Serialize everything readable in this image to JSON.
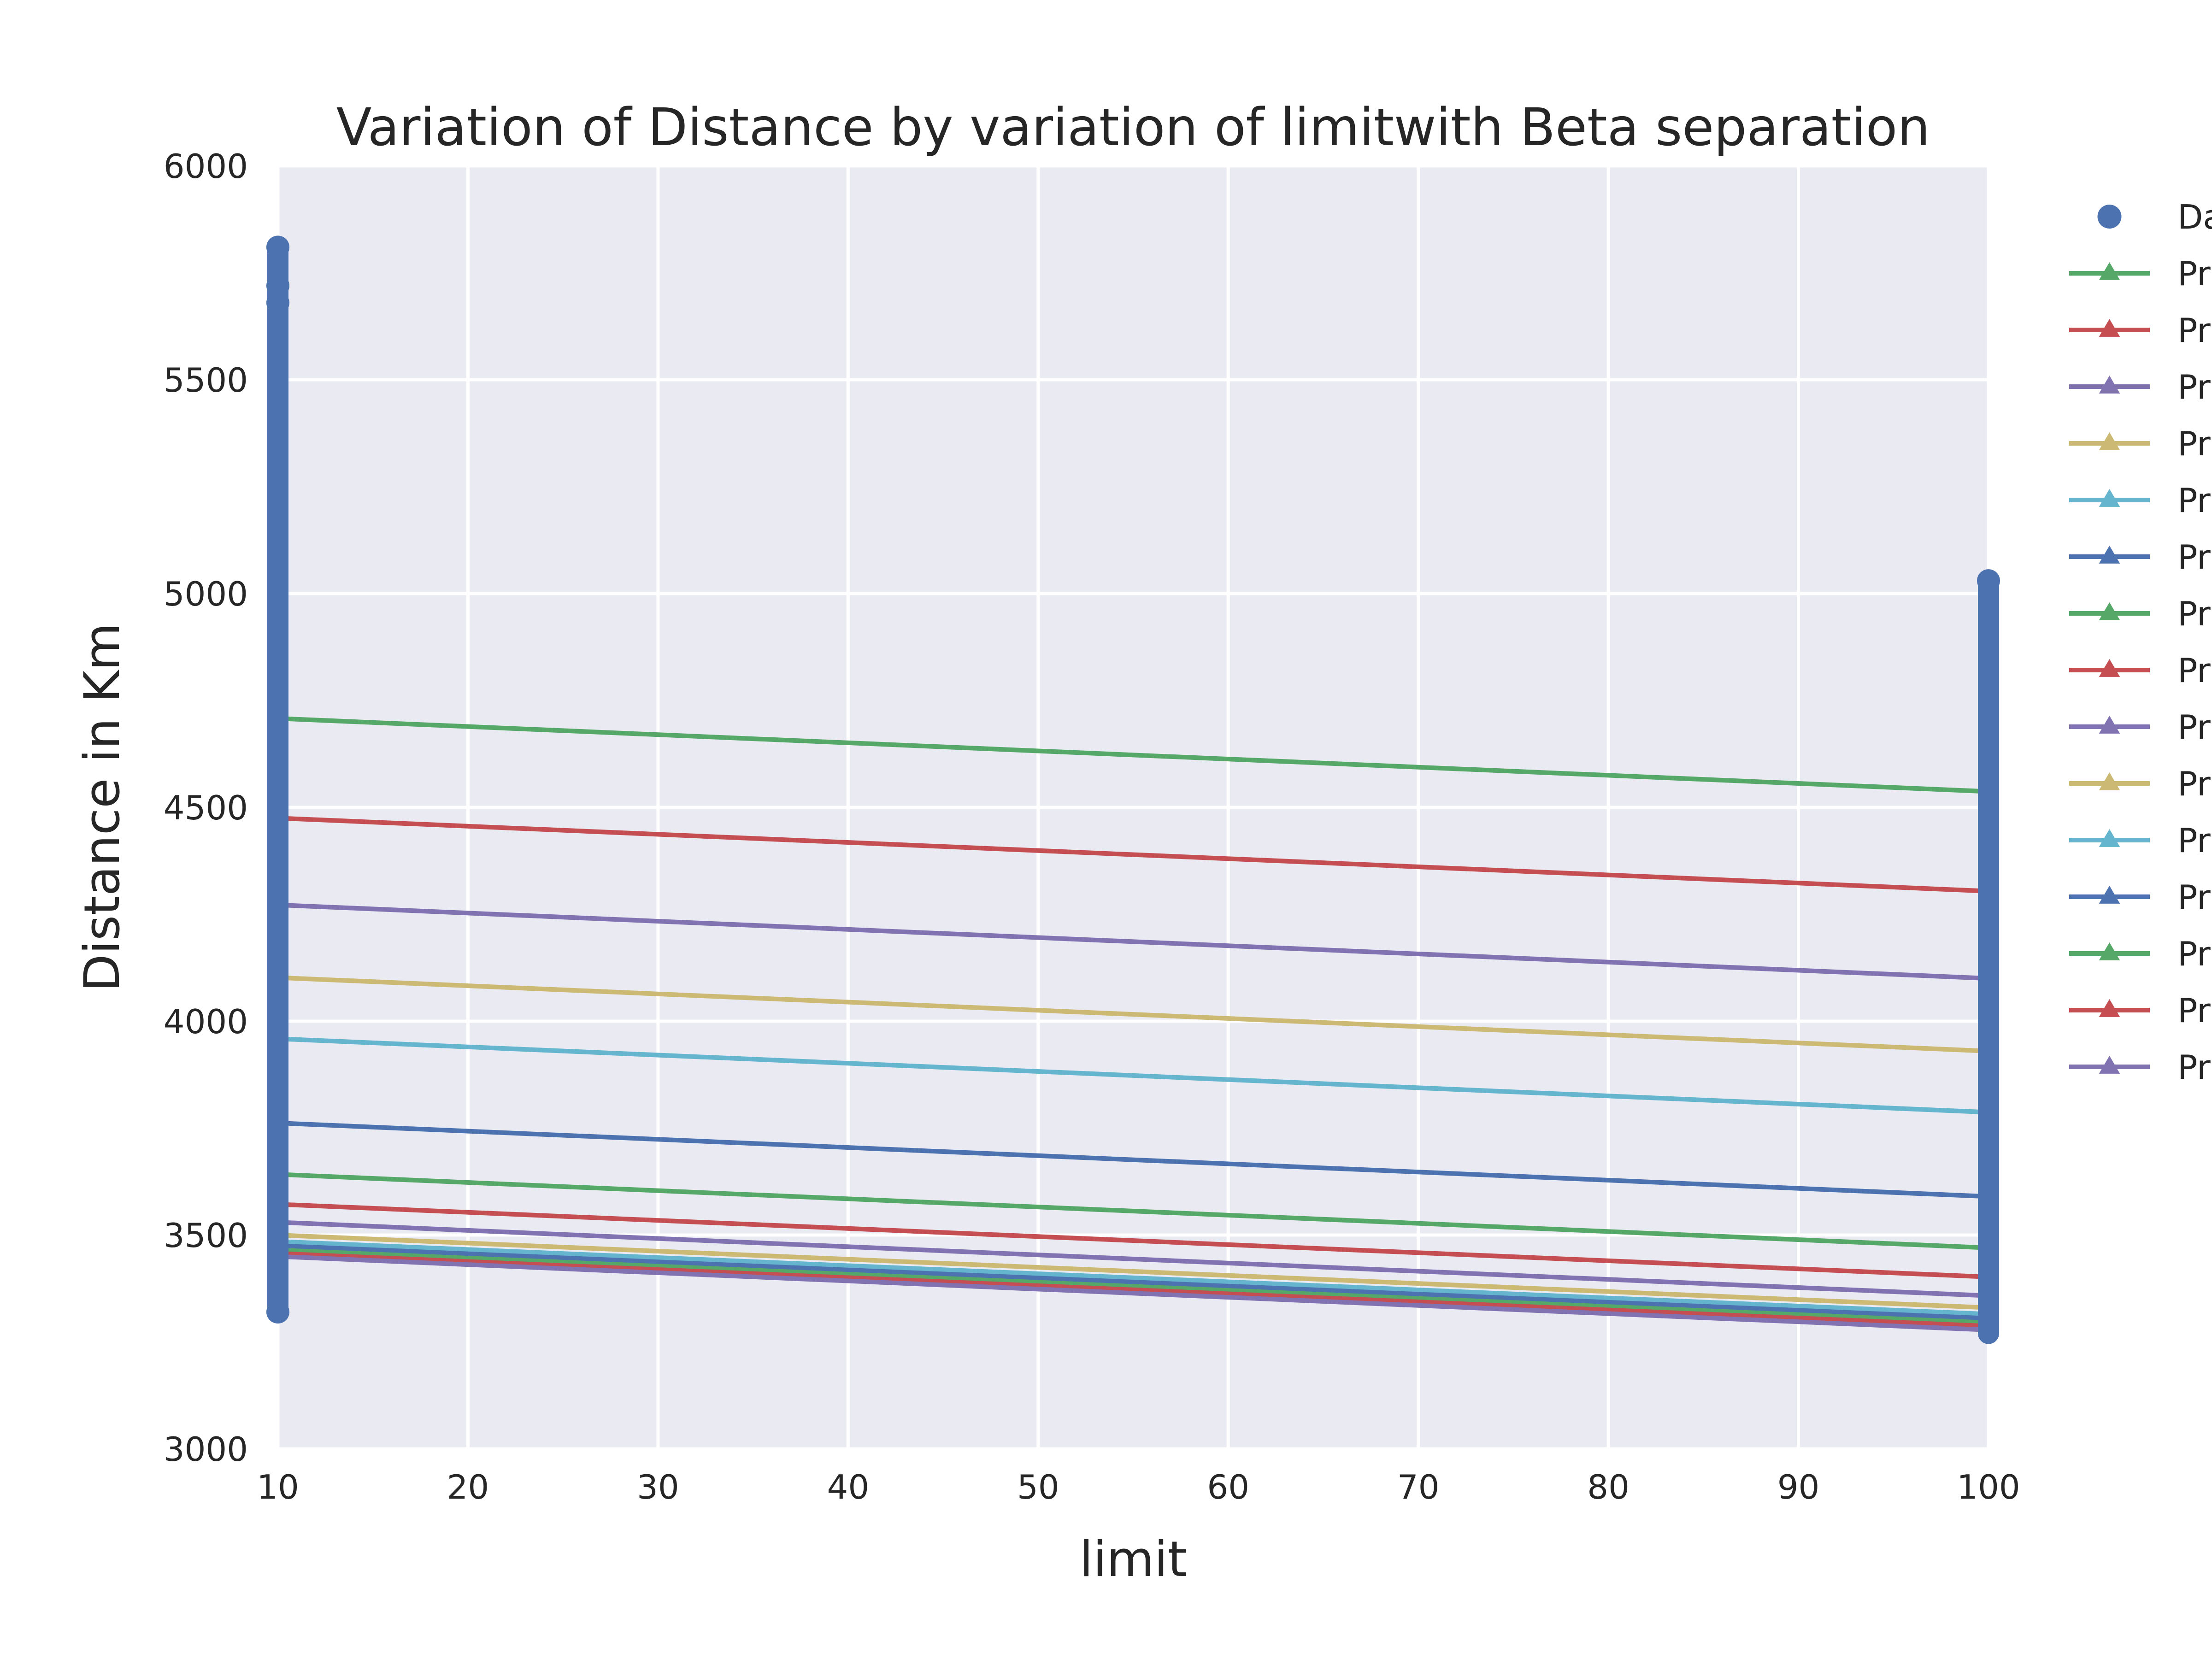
{
  "chart_data": {
    "type": "line",
    "title": "Variation of  Distance by variation of limitwith Beta separation",
    "xlabel": "limit",
    "ylabel": "Distance in Km",
    "xlim": [
      10,
      100
    ],
    "ylim": [
      3000,
      6000
    ],
    "x_ticks": [
      "10",
      "20",
      "30",
      "40",
      "50",
      "60",
      "70",
      "80",
      "90",
      "100"
    ],
    "y_ticks": [
      "3000",
      "3500",
      "4000",
      "4500",
      "5000",
      "5500",
      "6000"
    ],
    "grid": true,
    "legend_position": "right, outside plot (clipped)",
    "colors": {
      "background": "#eaeaf2",
      "grid": "#ffffff",
      "data_points": "#4c72b0"
    },
    "data_points": {
      "name": "Da",
      "color": "#4c72b0",
      "columns": [
        {
          "x": 10,
          "min": 3320,
          "max": 5810
        },
        {
          "x": 100,
          "min": 3270,
          "max": 5030
        }
      ],
      "highlighted": [
        {
          "x": 10,
          "y": 5810
        },
        {
          "x": 10,
          "y": 5720
        },
        {
          "x": 10,
          "y": 5680
        },
        {
          "x": 10,
          "y": 3320
        },
        {
          "x": 100,
          "y": 5030
        }
      ]
    },
    "x": [
      10,
      100
    ],
    "series": [
      {
        "name": "Pr",
        "color": "#55a868",
        "values": [
          4708,
          4537
        ]
      },
      {
        "name": "Pr",
        "color": "#c44e52",
        "values": [
          4475,
          4304
        ]
      },
      {
        "name": "Pr",
        "color": "#8172b2",
        "values": [
          4272,
          4100
        ]
      },
      {
        "name": "Pr",
        "color": "#ccb974",
        "values": [
          4102,
          3930
        ]
      },
      {
        "name": "Pr",
        "color": "#64b5cd",
        "values": [
          3959,
          3787
        ]
      },
      {
        "name": "Pr",
        "color": "#4c72b0",
        "values": [
          3762,
          3590
        ]
      },
      {
        "name": "Pr",
        "color": "#55a868",
        "values": [
          3642,
          3470
        ]
      },
      {
        "name": "Pr",
        "color": "#c44e52",
        "values": [
          3572,
          3402
        ]
      },
      {
        "name": "Pr",
        "color": "#8172b2",
        "values": [
          3530,
          3358
        ]
      },
      {
        "name": "Pr",
        "color": "#ccb974",
        "values": [
          3500,
          3330
        ]
      },
      {
        "name": "Pr",
        "color": "#64b5cd",
        "values": [
          3485,
          3315
        ]
      },
      {
        "name": "Pr",
        "color": "#4c72b0",
        "values": [
          3475,
          3305
        ]
      },
      {
        "name": "Pr",
        "color": "#55a868",
        "values": [
          3465,
          3295
        ]
      },
      {
        "name": "Pr",
        "color": "#c44e52",
        "values": [
          3457,
          3287
        ]
      },
      {
        "name": "Pr",
        "color": "#8172b2",
        "values": [
          3450,
          3278
        ]
      }
    ]
  }
}
